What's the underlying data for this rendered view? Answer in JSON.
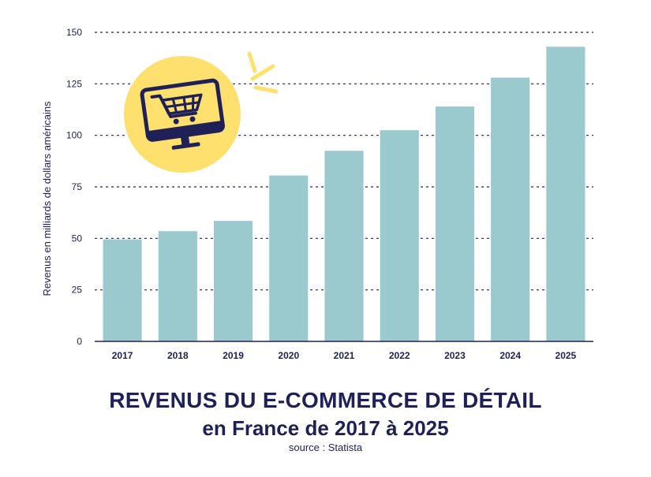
{
  "chart_data": {
    "type": "bar",
    "categories": [
      "2017",
      "2018",
      "2019",
      "2020",
      "2021",
      "2022",
      "2023",
      "2024",
      "2025"
    ],
    "values": [
      49.5,
      53.5,
      58.5,
      80.5,
      92.5,
      102.5,
      114,
      128,
      143
    ],
    "ylabel": "Revenus en milliards de dollars américains",
    "xlabel": "",
    "ylim": [
      0,
      150
    ],
    "yticks": [
      0,
      25,
      50,
      75,
      100,
      125,
      150
    ],
    "grid": true,
    "bar_color": "#9bcace",
    "axis_color": "#1e2057",
    "grid_color": "#1e2057"
  },
  "title_line1": "REVENUS DU E-COMMERCE DE DÉTAIL",
  "title_line2": "en France de 2017 à 2025",
  "source": "source : Statista",
  "illustration": {
    "icon": "shopping-cart-monitor-icon",
    "circle_color": "#fde06e",
    "line_color": "#1e2057"
  }
}
